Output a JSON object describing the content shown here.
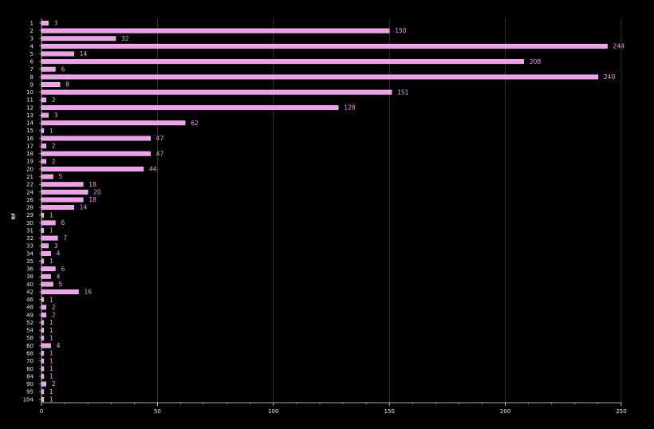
{
  "chart_data": {
    "type": "bar",
    "orientation": "horizontal",
    "ylabel": "RF",
    "xlabel": "",
    "xlim": [
      0,
      250
    ],
    "x_ticks": [
      0,
      50,
      100,
      150,
      200,
      250
    ],
    "grid": true,
    "colors": {
      "bar": "#f39cf0",
      "bar_edge": "#ffffff",
      "background": "#000000",
      "grid": "#555555",
      "text": "#e6e6e6"
    },
    "categories": [
      "1",
      "2",
      "3",
      "4",
      "5",
      "6",
      "7",
      "8",
      "9",
      "10",
      "11",
      "12",
      "13",
      "14",
      "15",
      "16",
      "17",
      "18",
      "19",
      "20",
      "21",
      "22",
      "24",
      "26",
      "28",
      "29",
      "30",
      "31",
      "32",
      "33",
      "34",
      "35",
      "36",
      "38",
      "40",
      "42",
      "46",
      "48",
      "49",
      "52",
      "54",
      "58",
      "60",
      "68",
      "70",
      "80",
      "84",
      "90",
      "95",
      "104"
    ],
    "values": [
      3,
      150,
      32,
      244,
      14,
      208,
      6,
      240,
      8,
      151,
      2,
      128,
      3,
      62,
      1,
      47,
      2,
      47,
      2,
      44,
      5,
      18,
      20,
      18,
      14,
      1,
      6,
      1,
      7,
      3,
      4,
      1,
      6,
      4,
      5,
      16,
      1,
      2,
      2,
      1,
      1,
      1,
      4,
      1,
      1,
      1,
      1,
      2,
      1,
      1
    ]
  }
}
